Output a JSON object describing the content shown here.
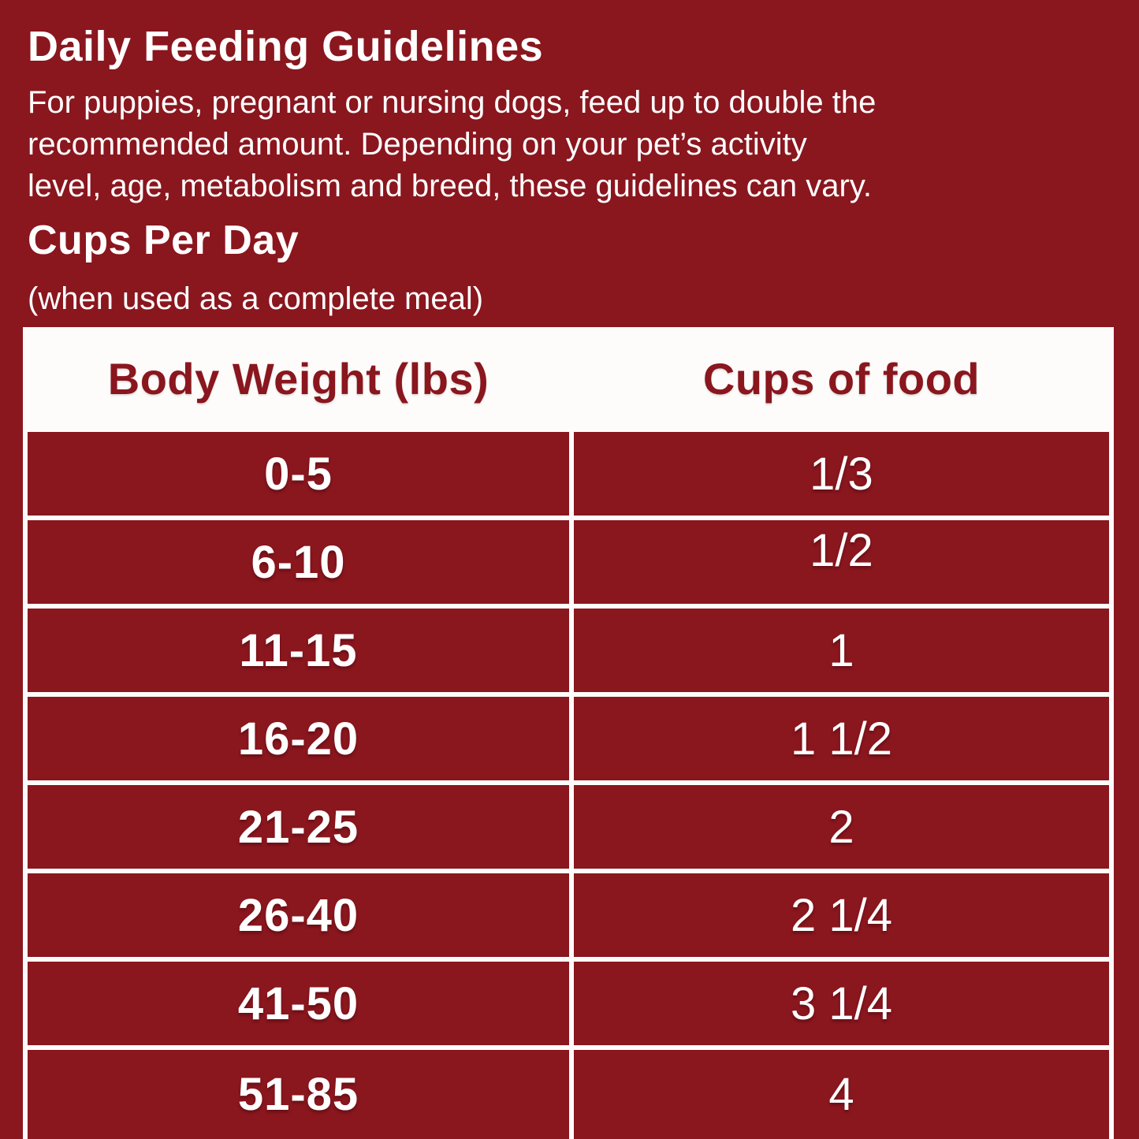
{
  "colors": {
    "background": "#8A161E",
    "table_background": "#FDFCFB",
    "header_text": "#8A161E",
    "cell_text": "#FFFFFF"
  },
  "header": {
    "title": "Daily Feeding Guidelines",
    "description_lines": [
      "For puppies, pregnant or nursing dogs, feed up to double the",
      "recommended amount. Depending on your pet’s activity",
      "level, age, metabolism and breed, these guidelines can vary."
    ]
  },
  "section": {
    "title": "Cups Per Day",
    "note": "(when used as a complete meal)"
  },
  "chart_data": {
    "type": "table",
    "title": "Cups Per Day (when used as a complete meal)",
    "columns": [
      "Body Weight (lbs)",
      "Cups of food"
    ],
    "rows": [
      [
        "0-5",
        "1/3"
      ],
      [
        "6-10",
        "1/2"
      ],
      [
        "11-15",
        "1"
      ],
      [
        "16-20",
        "1 1/2"
      ],
      [
        "21-25",
        "2"
      ],
      [
        "26-40",
        "2 1/4"
      ],
      [
        "41-50",
        "3 1/4"
      ],
      [
        "51-85",
        "4"
      ]
    ]
  }
}
